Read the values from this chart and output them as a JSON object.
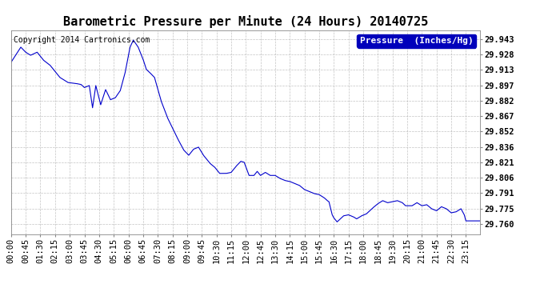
{
  "title": "Barometric Pressure per Minute (24 Hours) 20140725",
  "copyright": "Copyright 2014 Cartronics.com",
  "legend_label": "Pressure  (Inches/Hg)",
  "line_color": "#0000CC",
  "background_color": "#ffffff",
  "grid_color": "#aaaaaa",
  "yticks": [
    29.76,
    29.775,
    29.791,
    29.806,
    29.821,
    29.836,
    29.852,
    29.867,
    29.882,
    29.897,
    29.913,
    29.928,
    29.943
  ],
  "ylim": [
    29.75,
    29.952
  ],
  "xtick_labels": [
    "00:00",
    "00:45",
    "01:30",
    "02:15",
    "03:00",
    "03:45",
    "04:30",
    "05:15",
    "06:00",
    "06:45",
    "07:30",
    "08:15",
    "09:00",
    "09:45",
    "10:30",
    "11:15",
    "12:00",
    "12:45",
    "13:30",
    "14:15",
    "15:00",
    "15:45",
    "16:30",
    "17:15",
    "18:00",
    "18:45",
    "19:30",
    "20:15",
    "21:00",
    "21:45",
    "22:30",
    "23:15"
  ],
  "title_fontsize": 11,
  "label_fontsize": 7.5,
  "legend_fontsize": 8,
  "copyright_fontsize": 7,
  "keypoints": [
    [
      0,
      29.92
    ],
    [
      30,
      29.935
    ],
    [
      45,
      29.93
    ],
    [
      60,
      29.927
    ],
    [
      80,
      29.93
    ],
    [
      100,
      29.922
    ],
    [
      120,
      29.917
    ],
    [
      150,
      29.905
    ],
    [
      175,
      29.9
    ],
    [
      200,
      29.899
    ],
    [
      215,
      29.898
    ],
    [
      225,
      29.895
    ],
    [
      240,
      29.897
    ],
    [
      250,
      29.875
    ],
    [
      260,
      29.897
    ],
    [
      275,
      29.878
    ],
    [
      290,
      29.893
    ],
    [
      305,
      29.883
    ],
    [
      320,
      29.885
    ],
    [
      335,
      29.892
    ],
    [
      350,
      29.91
    ],
    [
      365,
      29.935
    ],
    [
      375,
      29.942
    ],
    [
      390,
      29.935
    ],
    [
      405,
      29.923
    ],
    [
      415,
      29.913
    ],
    [
      425,
      29.91
    ],
    [
      440,
      29.905
    ],
    [
      460,
      29.882
    ],
    [
      480,
      29.865
    ],
    [
      510,
      29.845
    ],
    [
      530,
      29.833
    ],
    [
      545,
      29.828
    ],
    [
      560,
      29.834
    ],
    [
      575,
      29.836
    ],
    [
      590,
      29.828
    ],
    [
      610,
      29.82
    ],
    [
      625,
      29.816
    ],
    [
      640,
      29.81
    ],
    [
      660,
      29.81
    ],
    [
      675,
      29.811
    ],
    [
      690,
      29.817
    ],
    [
      705,
      29.822
    ],
    [
      715,
      29.821
    ],
    [
      730,
      29.808
    ],
    [
      745,
      29.808
    ],
    [
      755,
      29.812
    ],
    [
      765,
      29.808
    ],
    [
      780,
      29.811
    ],
    [
      795,
      29.808
    ],
    [
      810,
      29.808
    ],
    [
      825,
      29.805
    ],
    [
      840,
      29.803
    ],
    [
      855,
      29.802
    ],
    [
      870,
      29.8
    ],
    [
      885,
      29.798
    ],
    [
      900,
      29.794
    ],
    [
      915,
      29.792
    ],
    [
      930,
      29.79
    ],
    [
      945,
      29.789
    ],
    [
      960,
      29.786
    ],
    [
      970,
      29.783
    ],
    [
      975,
      29.782
    ],
    [
      985,
      29.769
    ],
    [
      990,
      29.766
    ],
    [
      1000,
      29.762
    ],
    [
      1010,
      29.765
    ],
    [
      1020,
      29.768
    ],
    [
      1035,
      29.769
    ],
    [
      1050,
      29.767
    ],
    [
      1060,
      29.765
    ],
    [
      1075,
      29.768
    ],
    [
      1090,
      29.77
    ],
    [
      1110,
      29.776
    ],
    [
      1125,
      29.78
    ],
    [
      1140,
      29.783
    ],
    [
      1155,
      29.781
    ],
    [
      1170,
      29.782
    ],
    [
      1185,
      29.783
    ],
    [
      1200,
      29.781
    ],
    [
      1210,
      29.778
    ],
    [
      1230,
      29.778
    ],
    [
      1245,
      29.781
    ],
    [
      1260,
      29.778
    ],
    [
      1275,
      29.779
    ],
    [
      1290,
      29.775
    ],
    [
      1305,
      29.773
    ],
    [
      1320,
      29.777
    ],
    [
      1335,
      29.775
    ],
    [
      1350,
      29.771
    ],
    [
      1365,
      29.772
    ],
    [
      1380,
      29.775
    ],
    [
      1390,
      29.769
    ],
    [
      1395,
      29.763
    ]
  ]
}
